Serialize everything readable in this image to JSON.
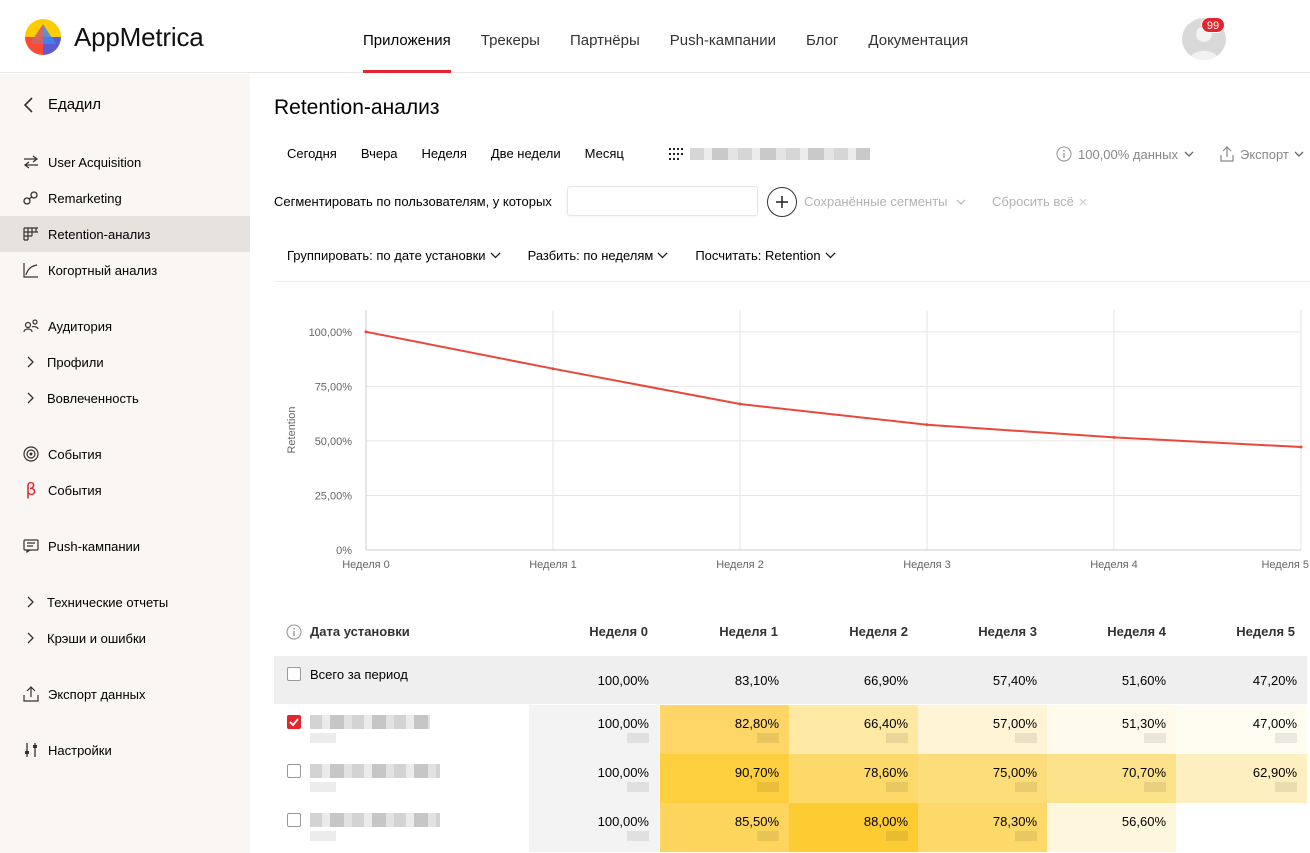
{
  "header": {
    "brand": "AppMetrica",
    "nav": [
      "Приложения",
      "Трекеры",
      "Партнёры",
      "Push-кампании",
      "Блог",
      "Документация"
    ],
    "active_nav": 0,
    "notifications": "99"
  },
  "sidebar": {
    "app_name": "Едадил",
    "items": [
      {
        "label": "User Acquisition",
        "icon": "arrow-enter-icon"
      },
      {
        "label": "Remarketing",
        "icon": "link-icon"
      },
      {
        "label": "Retention-анализ",
        "icon": "table-grid-icon",
        "active": true
      },
      {
        "label": "Когортный анализ",
        "icon": "curve-chart-icon"
      },
      {
        "label": "Аудитория",
        "icon": "audience-icon"
      },
      {
        "label": "Профили",
        "icon": "chevron-right-icon"
      },
      {
        "label": "Вовлеченность",
        "icon": "chevron-right-icon"
      },
      {
        "label": "События",
        "icon": "target-icon"
      },
      {
        "label": "События",
        "icon": "beta-icon"
      },
      {
        "label": "Push-кампании",
        "icon": "message-icon"
      },
      {
        "label": "Технические отчеты",
        "icon": "chevron-right-icon"
      },
      {
        "label": "Крэши и ошибки",
        "icon": "chevron-right-icon"
      },
      {
        "label": "Экспорт данных",
        "icon": "upload-icon"
      },
      {
        "label": "Настройки",
        "icon": "sliders-icon"
      }
    ]
  },
  "page": {
    "title": "Retention-анализ",
    "periods": [
      "Сегодня",
      "Вчера",
      "Неделя",
      "Две недели",
      "Месяц"
    ],
    "data_pct": "100,00% данных",
    "export": "Экспорт",
    "segment_label": "Сегментировать по пользователям, у которых",
    "saved_segments": "Сохранённые сегменты",
    "reset": "Сбросить всё",
    "group_by": "Группировать: по дате установки",
    "split_by": "Разбить: по неделям",
    "calculate": "Посчитать: Retention"
  },
  "chart_data": {
    "type": "line",
    "x": [
      "Неделя 0",
      "Неделя 1",
      "Неделя 2",
      "Неделя 3",
      "Неделя 4",
      "Неделя 5"
    ],
    "series": [
      {
        "values": [
          100.0,
          83.1,
          66.9,
          57.4,
          51.6,
          47.2
        ]
      }
    ],
    "ylabel": "Retention",
    "yticks": [
      "0%",
      "25,00%",
      "50,00%",
      "75,00%",
      "100,00%"
    ],
    "ylim": [
      0,
      110
    ],
    "grid": true,
    "color": "#e8483a"
  },
  "table": {
    "header_first": "Дата установки",
    "weeks": [
      "Неделя 0",
      "Неделя 1",
      "Неделя 2",
      "Неделя 3",
      "Неделя 4",
      "Неделя 5"
    ],
    "total_label": "Всего за период",
    "total": [
      "100,00%",
      "83,10%",
      "66,90%",
      "57,40%",
      "51,60%",
      "47,20%"
    ],
    "rows": [
      {
        "checked": true,
        "values": [
          "100,00%",
          "82,80%",
          "66,40%",
          "57,00%",
          "51,30%",
          "47,00%"
        ]
      },
      {
        "checked": false,
        "values": [
          "100,00%",
          "90,70%",
          "78,60%",
          "75,00%",
          "70,70%",
          "62,90%"
        ]
      },
      {
        "checked": false,
        "values": [
          "100,00%",
          "85,50%",
          "88,00%",
          "78,30%",
          "56,60%",
          ""
        ]
      }
    ],
    "heat_colors": {
      "c1": "#fddb5e",
      "c2": "#fde28a",
      "c3": "#feefc0",
      "c4": "#fff7e0",
      "c5": "#fff2c8",
      "c6": "#fde88f",
      "c7": "#ffd233"
    }
  }
}
